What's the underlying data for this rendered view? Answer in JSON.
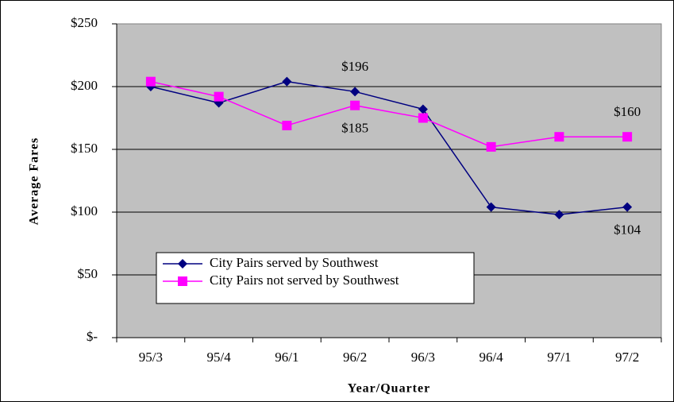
{
  "chart_data": {
    "type": "line",
    "x_label": "Year/Quarter",
    "y_label": "Average Fares",
    "categories": [
      "95/3",
      "95/4",
      "96/1",
      "96/2",
      "96/3",
      "96/4",
      "97/1",
      "97/2"
    ],
    "series": [
      {
        "name": "City Pairs served by Southwest",
        "color": "#000080",
        "marker": "diamond",
        "values": [
          200,
          187,
          204,
          196,
          182,
          104,
          98,
          104
        ],
        "value_labels": [
          null,
          null,
          null,
          "$196",
          null,
          null,
          null,
          "$104"
        ]
      },
      {
        "name": "City Pairs not served by Southwest",
        "color": "#ff00ff",
        "marker": "square",
        "values": [
          204,
          192,
          169,
          185,
          175,
          152,
          160,
          160
        ],
        "value_labels": [
          null,
          null,
          null,
          "$185",
          null,
          null,
          null,
          "$160"
        ]
      }
    ],
    "ylim": [
      0,
      250
    ],
    "yticks": [
      {
        "value": 0,
        "label": "$-"
      },
      {
        "value": 50,
        "label": "$50"
      },
      {
        "value": 100,
        "label": "$100"
      },
      {
        "value": 150,
        "label": "$150"
      },
      {
        "value": 200,
        "label": "$200"
      },
      {
        "value": 250,
        "label": "$250"
      }
    ],
    "grid": true,
    "legend": "lower left",
    "plot_background": "#c0c0c0"
  }
}
